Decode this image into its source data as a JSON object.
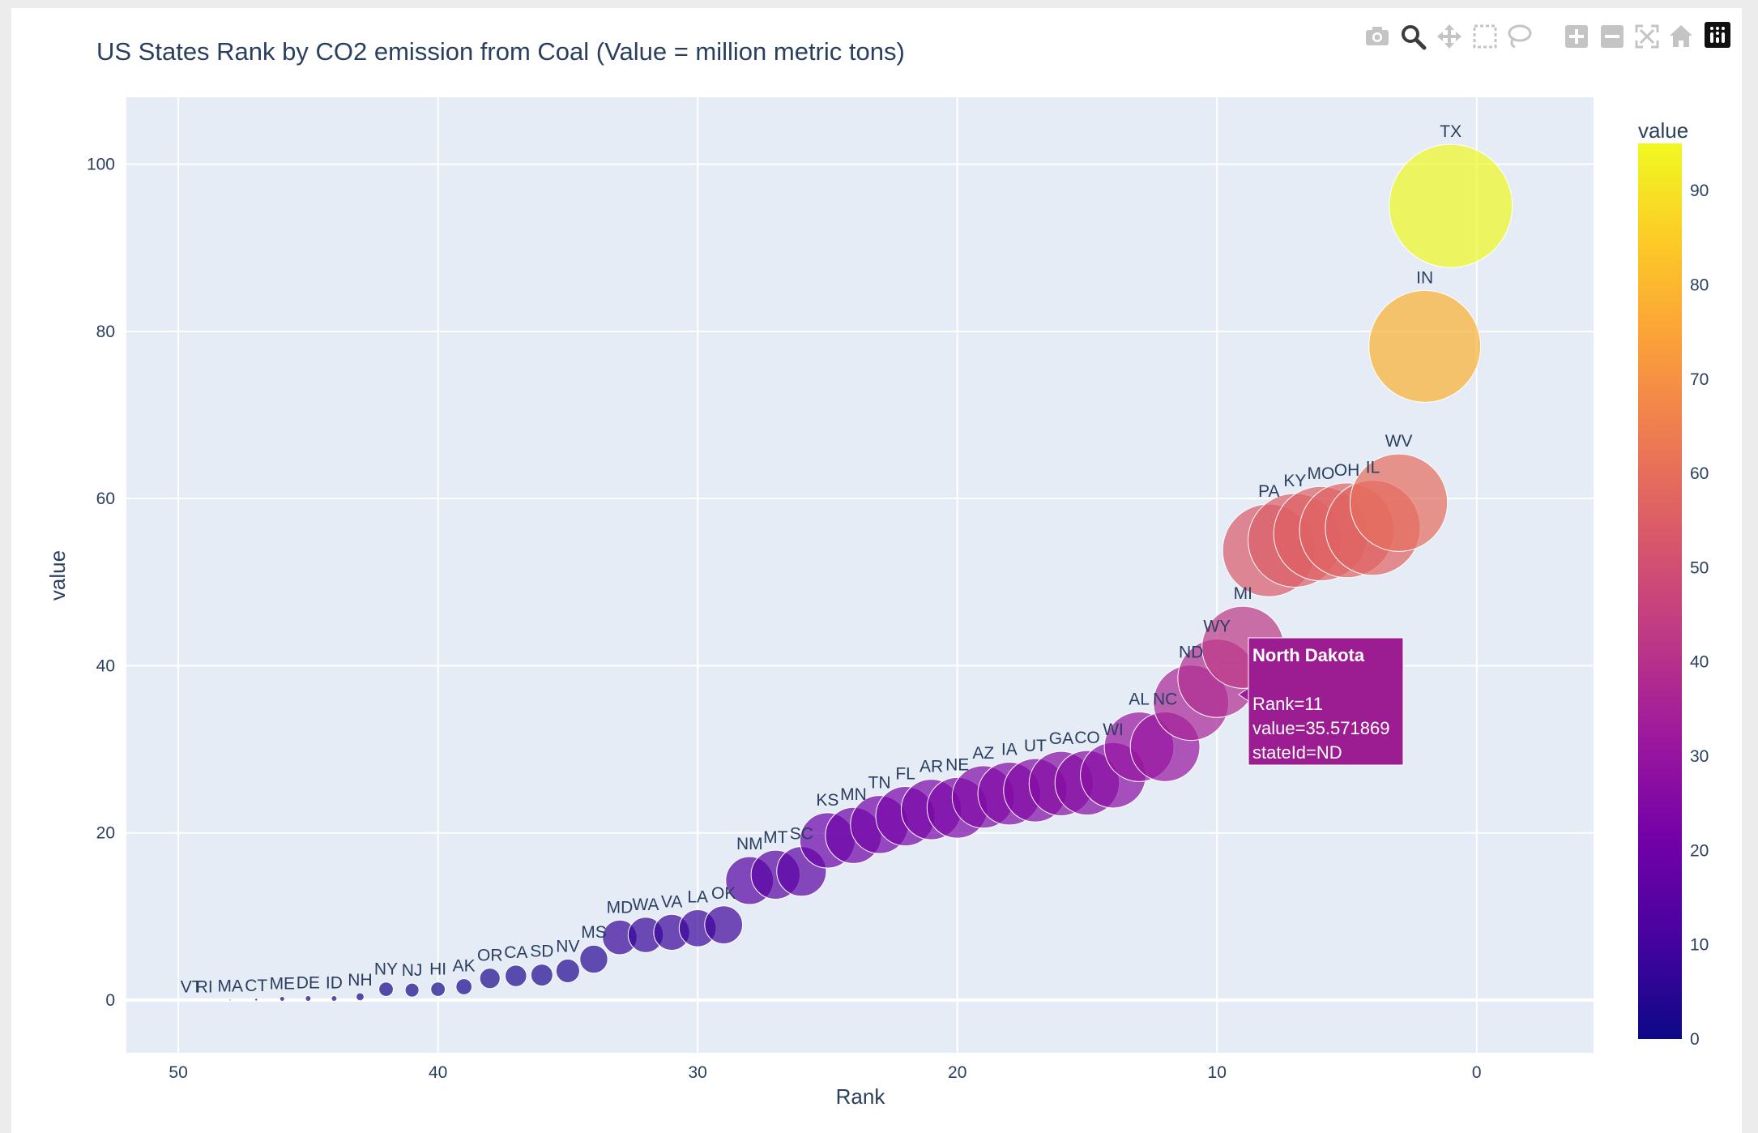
{
  "modebar": {
    "buttons": [
      "camera-icon",
      "zoom-icon",
      "pan-icon",
      "box-select-icon",
      "lasso-icon",
      "zoom-in-icon",
      "zoom-out-icon",
      "autoscale-icon",
      "reset-axes-icon",
      "plotly-logo-icon"
    ]
  },
  "chart_data": {
    "type": "scatter",
    "title": "US States Rank by CO2 emission from Coal (Value = million metric tons)",
    "xlabel": "Rank",
    "ylabel": "value",
    "xlim": [
      52,
      -4.5
    ],
    "ylim": [
      -6.3,
      108
    ],
    "x_reversed": true,
    "x_ticks": [
      "50",
      "40",
      "30",
      "20",
      "10",
      "0"
    ],
    "y_ticks": [
      "0",
      "20",
      "40",
      "60",
      "80",
      "100"
    ],
    "grid": true,
    "marker_size_encodes": "value",
    "colorscale": "plasma",
    "colorbar": {
      "title": "value",
      "range": [
        0,
        95
      ],
      "ticks": [
        "0",
        "10",
        "20",
        "30",
        "40",
        "50",
        "60",
        "70",
        "80",
        "90"
      ],
      "placement": "right"
    },
    "points": [
      {
        "label": "TX",
        "rank": 1,
        "value": 95
      },
      {
        "label": "IN",
        "rank": 2,
        "value": 78.2
      },
      {
        "label": "WV",
        "rank": 3,
        "value": 59.5
      },
      {
        "label": "IL",
        "rank": 4,
        "value": 56.5
      },
      {
        "label": "OH",
        "rank": 5,
        "value": 56.2
      },
      {
        "label": "MO",
        "rank": 6,
        "value": 55.8
      },
      {
        "label": "KY",
        "rank": 7,
        "value": 55
      },
      {
        "label": "PA",
        "rank": 8,
        "value": 53.8
      },
      {
        "label": "MI",
        "rank": 9,
        "value": 42.2
      },
      {
        "label": "WY",
        "rank": 10,
        "value": 38.5
      },
      {
        "label": "ND",
        "rank": 11,
        "value": 35.571869
      },
      {
        "label": "NC",
        "rank": 12,
        "value": 30.3
      },
      {
        "label": "AL",
        "rank": 13,
        "value": 30.3
      },
      {
        "label": "WI",
        "rank": 14,
        "value": 26.9
      },
      {
        "label": "CO",
        "rank": 15,
        "value": 26
      },
      {
        "label": "GA",
        "rank": 16,
        "value": 25.9
      },
      {
        "label": "UT",
        "rank": 17,
        "value": 25.1
      },
      {
        "label": "IA",
        "rank": 18,
        "value": 24.7
      },
      {
        "label": "AZ",
        "rank": 19,
        "value": 24.3
      },
      {
        "label": "NE",
        "rank": 20,
        "value": 23
      },
      {
        "label": "AR",
        "rank": 21,
        "value": 22.8
      },
      {
        "label": "FL",
        "rank": 22,
        "value": 22
      },
      {
        "label": "TN",
        "rank": 23,
        "value": 21
      },
      {
        "label": "MN",
        "rank": 24,
        "value": 19.7
      },
      {
        "label": "KS",
        "rank": 25,
        "value": 19.1
      },
      {
        "label": "SC",
        "rank": 26,
        "value": 15.4
      },
      {
        "label": "MT",
        "rank": 27,
        "value": 15
      },
      {
        "label": "NM",
        "rank": 28,
        "value": 14.3
      },
      {
        "label": "OK",
        "rank": 29,
        "value": 9
      },
      {
        "label": "LA",
        "rank": 30,
        "value": 8.6
      },
      {
        "label": "VA",
        "rank": 31,
        "value": 8.1
      },
      {
        "label": "WA",
        "rank": 32,
        "value": 7.8
      },
      {
        "label": "MD",
        "rank": 33,
        "value": 7.5
      },
      {
        "label": "MS",
        "rank": 34,
        "value": 4.9
      },
      {
        "label": "NV",
        "rank": 35,
        "value": 3.5
      },
      {
        "label": "SD",
        "rank": 36,
        "value": 3
      },
      {
        "label": "CA",
        "rank": 37,
        "value": 2.9
      },
      {
        "label": "OR",
        "rank": 38,
        "value": 2.6
      },
      {
        "label": "AK",
        "rank": 39,
        "value": 1.6
      },
      {
        "label": "HI",
        "rank": 40,
        "value": 1.3
      },
      {
        "label": "NJ",
        "rank": 41,
        "value": 1.2
      },
      {
        "label": "NY",
        "rank": 42,
        "value": 1.3
      },
      {
        "label": "NH",
        "rank": 43,
        "value": 0.4
      },
      {
        "label": "ID",
        "rank": 44,
        "value": 0.2
      },
      {
        "label": "DE",
        "rank": 45,
        "value": 0.2
      },
      {
        "label": "ME",
        "rank": 46,
        "value": 0.15
      },
      {
        "label": "CT",
        "rank": 47,
        "value": 0.05
      },
      {
        "label": "MA",
        "rank": 48,
        "value": 0.02
      },
      {
        "label": "RI",
        "rank": 49,
        "value": 0
      },
      {
        "label": "VT",
        "rank": 49.5,
        "value": 0
      }
    ],
    "hover": {
      "title": "North Dakota",
      "lines": [
        "Rank=11",
        "value=35.571869",
        "stateId=ND"
      ],
      "target_label": "ND"
    }
  }
}
